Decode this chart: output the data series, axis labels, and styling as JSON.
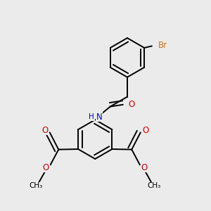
{
  "bg_color": "#ebebeb",
  "bond_color": "#000000",
  "bond_width": 1.4,
  "atom_colors": {
    "Br": "#cc7722",
    "O": "#cc0000",
    "N": "#0000cc",
    "C": "#000000",
    "H": "#000000"
  },
  "font_size": 8.5
}
